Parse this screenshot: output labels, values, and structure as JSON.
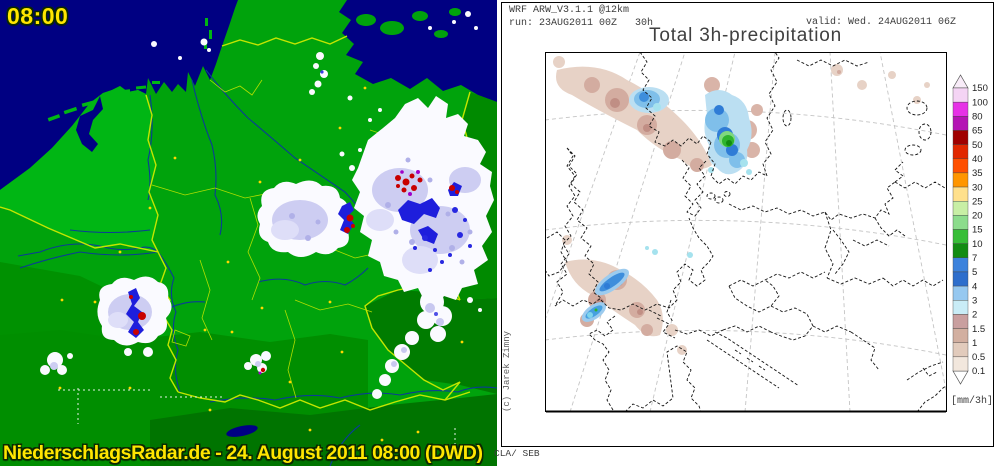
{
  "left_map": {
    "clock": "08:00",
    "caption": "NiederschlagsRadar.de - 24. August 2011 08:00 (DWD)",
    "colors": {
      "sea": "#000082",
      "land": "#00A30C",
      "land_bright": "#00B614",
      "border_line": "#C3E600",
      "river": "#0A3C96",
      "precip_light": "#FAFAFF",
      "precip_moderate": "#CDCDF2",
      "precip_heavy": "#1E1EDC",
      "precip_extreme": "#C80000",
      "label_yellow": "#FFE600"
    }
  },
  "right_map": {
    "model_line1": "WRF ARW_V3.1.1 @12km",
    "model_line2": "run: 23AUG2011 00Z   30h",
    "valid_text": "valid: Wed. 24AUG2011 06Z",
    "title": "Total 3h-precipitation",
    "unit": "[mm/3h]",
    "credit": "(c) Jarek Zimny",
    "footer_text": "CLA/ SEB",
    "scale": {
      "values": [
        "150",
        "100",
        "80",
        "65",
        "50",
        "40",
        "35",
        "30",
        "25",
        "20",
        "15",
        "10",
        "7",
        "5",
        "4",
        "3",
        "2",
        "1.5",
        "1",
        "0.5",
        "0.1"
      ],
      "band_colors": [
        "#F4D4F4",
        "#E632E6",
        "#B414B4",
        "#A00000",
        "#E12800",
        "#FF5000",
        "#FF9600",
        "#FFE08C",
        "#C8EFA5",
        "#8CDC8C",
        "#37BE37",
        "#128C12",
        "#3C82DC",
        "#2E6ECC",
        "#96C8F0",
        "#C9ECF6",
        "#C99F9F",
        "#D2AFA0",
        "#E2CBBC",
        "#F2E7DD"
      ]
    }
  }
}
